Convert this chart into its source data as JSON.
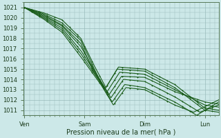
{
  "title": "",
  "xlabel": "Pression niveau de la mer( hPa )",
  "background_color": "#cce8e8",
  "grid_color": "#99bbbb",
  "line_color": "#1a5c1a",
  "ylim": [
    1010.5,
    1021.5
  ],
  "yticks": [
    1011,
    1012,
    1013,
    1014,
    1015,
    1016,
    1017,
    1018,
    1019,
    1020,
    1021
  ],
  "xtick_labels": [
    "Ven",
    "Sam",
    "Dim",
    "Lun"
  ],
  "xtick_positions": [
    0,
    96,
    192,
    288
  ],
  "xlim": [
    -2,
    310
  ],
  "line_width": 0.8,
  "marker_size": 1.8,
  "ensemble_lines": [
    {
      "key_x": [
        0,
        30,
        60,
        90,
        110,
        130,
        150,
        192,
        240,
        288,
        310
      ],
      "key_y": [
        1021,
        1020.5,
        1019.8,
        1018.0,
        1015.5,
        1013.2,
        1015.2,
        1015.0,
        1013.5,
        1011.2,
        1011.0
      ]
    },
    {
      "key_x": [
        0,
        30,
        60,
        90,
        110,
        128,
        148,
        192,
        240,
        288,
        310
      ],
      "key_y": [
        1021,
        1020.4,
        1019.5,
        1017.8,
        1015.2,
        1013.0,
        1015.0,
        1014.8,
        1013.2,
        1011.0,
        1010.8
      ]
    },
    {
      "key_x": [
        0,
        30,
        60,
        90,
        110,
        132,
        152,
        192,
        240,
        288,
        310
      ],
      "key_y": [
        1021,
        1020.3,
        1019.3,
        1017.5,
        1014.8,
        1012.8,
        1014.7,
        1014.5,
        1013.0,
        1011.5,
        1011.3
      ]
    },
    {
      "key_x": [
        0,
        30,
        60,
        90,
        115,
        135,
        155,
        192,
        240,
        288,
        310
      ],
      "key_y": [
        1021,
        1020.2,
        1019.2,
        1017.2,
        1014.5,
        1012.5,
        1014.3,
        1014.2,
        1012.8,
        1011.8,
        1011.6
      ]
    },
    {
      "key_x": [
        0,
        30,
        60,
        90,
        118,
        138,
        158,
        192,
        240,
        280,
        310
      ],
      "key_y": [
        1021,
        1020.1,
        1019.0,
        1016.8,
        1014.2,
        1012.2,
        1014.0,
        1013.8,
        1012.3,
        1010.8,
        1011.5
      ]
    },
    {
      "key_x": [
        0,
        30,
        60,
        90,
        120,
        140,
        160,
        192,
        240,
        275,
        310
      ],
      "key_y": [
        1021,
        1020.0,
        1018.8,
        1016.5,
        1013.8,
        1011.8,
        1013.5,
        1013.2,
        1011.8,
        1010.5,
        1011.8
      ]
    },
    {
      "key_x": [
        0,
        30,
        60,
        90,
        122,
        142,
        162,
        192,
        240,
        270,
        310
      ],
      "key_y": [
        1021,
        1019.9,
        1018.6,
        1016.2,
        1013.5,
        1011.5,
        1013.2,
        1013.0,
        1011.5,
        1010.8,
        1012.0
      ]
    }
  ]
}
